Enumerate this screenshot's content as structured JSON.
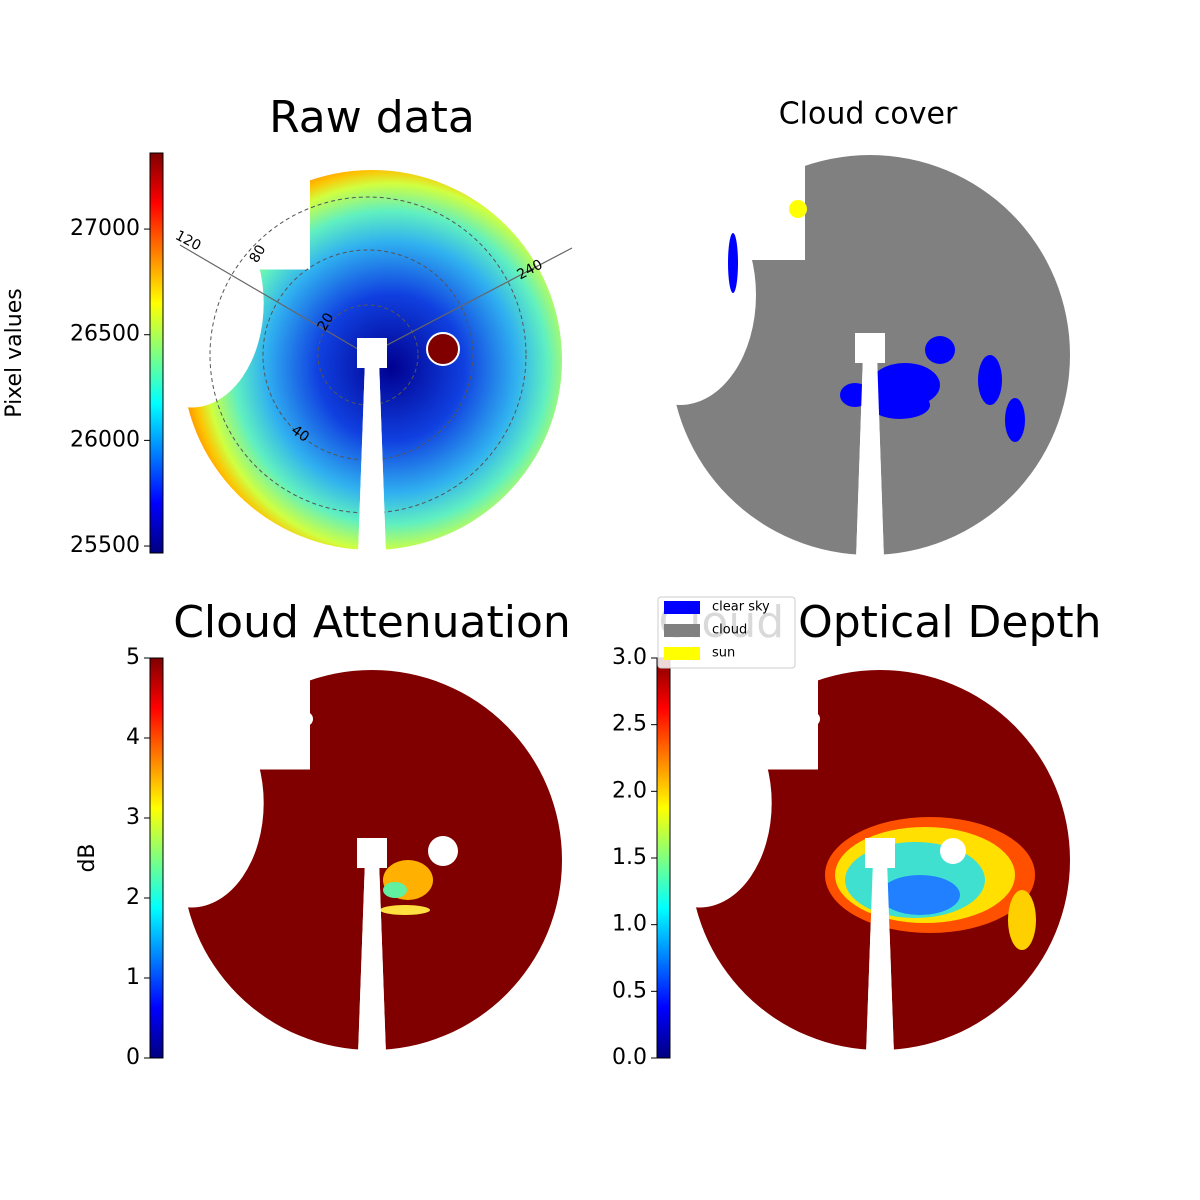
{
  "chart_data": [
    {
      "type": "image",
      "title": "Raw data",
      "annotations": [
        "120",
        "80",
        "240",
        "20",
        "40"
      ],
      "colorbar": {
        "label": "Pixel values",
        "lim": [
          25467,
          27360
        ],
        "ticks": [
          25500,
          26000,
          26500,
          27000
        ]
      }
    },
    {
      "type": "image",
      "title": "Cloud cover",
      "legend": [
        {
          "name": "clear sky",
          "color": "#0000ff"
        },
        {
          "name": "cloud",
          "color": "#808080"
        },
        {
          "name": "sun",
          "color": "#ffff00"
        }
      ]
    },
    {
      "type": "image",
      "title": "Cloud Attenuation",
      "colorbar": {
        "label": "dB",
        "lim": [
          0,
          5
        ],
        "ticks": [
          0,
          1,
          2,
          3,
          4,
          5
        ]
      }
    },
    {
      "type": "image",
      "title": "Cloud Optical Depth",
      "colorbar": {
        "lim": [
          0,
          3
        ],
        "ticks": [
          {
            "value": 0,
            "label": "0.0"
          },
          0.5,
          {
            "value": 1,
            "label": "1.0"
          },
          1.5,
          {
            "value": 2,
            "label": "2.0"
          },
          2.5,
          {
            "value": 3,
            "label": "3.0"
          }
        ]
      }
    }
  ]
}
